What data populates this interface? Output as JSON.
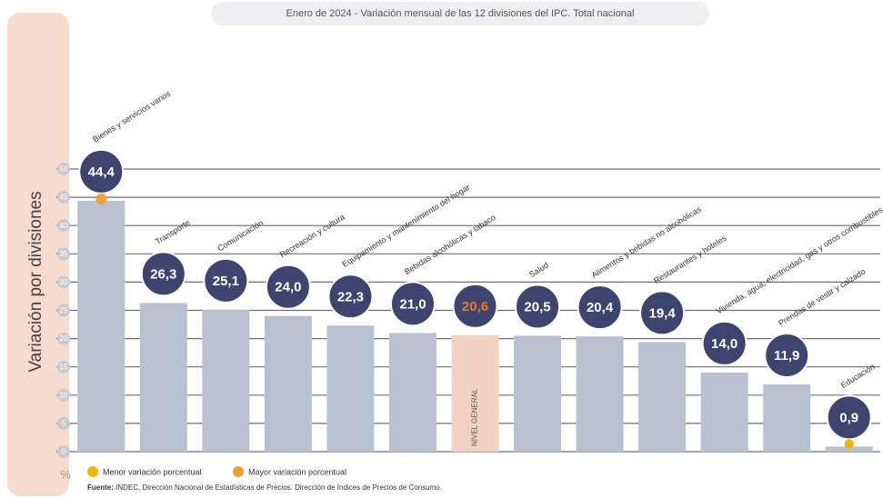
{
  "chart_data": {
    "type": "bar",
    "title": "Enero de 2024 - Variación mensual de las 12 divisiones del IPC. Total nacional",
    "y_axis_label": "Variación por divisiones",
    "unit_label": "%",
    "categories": [
      "Bienes y servicios varios",
      "Transporte",
      "Comunicación",
      "Recreación y cultura",
      "Equipamiento y mantenimiento del hogar",
      "Bebidas alcohólicas y tabaco",
      "NIVEL GENERAL",
      "Salud",
      "Alimentos y bebidas no alcohólicas",
      "Restaurantes y hoteles",
      "Vivienda, agua, electricidad, gas y otros combustibles",
      "Prendas de vestir y calzado",
      "Educación"
    ],
    "values": [
      44.4,
      26.3,
      25.1,
      24.0,
      22.3,
      21.0,
      20.6,
      20.5,
      20.4,
      19.4,
      14.0,
      11.9,
      0.9
    ],
    "value_labels": [
      "44,4",
      "26,3",
      "25,1",
      "24,0",
      "22,3",
      "21,0",
      "20,6",
      "20,5",
      "20,4",
      "19,4",
      "14,0",
      "11,9",
      "0,9"
    ],
    "color": "#b9c0d0",
    "colors": [
      "#b9c0d0",
      "#b9c0d0",
      "#b9c0d0",
      "#b9c0d0",
      "#b9c0d0",
      "#b9c0d0",
      "#f2d2c3",
      "#b9c0d0",
      "#b9c0d0",
      "#b9c0d0",
      "#b9c0d0",
      "#b9c0d0",
      "#b9c0d0"
    ],
    "accent_color": "#e8772e",
    "bubble_color": "#3d456f",
    "ylim": [
      0,
      50
    ],
    "yticks": [
      0,
      5,
      10,
      15,
      20,
      25,
      30,
      35,
      40,
      45,
      50
    ],
    "grid": true,
    "legend": [
      {
        "label": "Menor variación porcentual",
        "color": "#f5b400"
      },
      {
        "label": "Mayor variación porcentual",
        "color": "#f0a035"
      }
    ],
    "source_label": "Fuente:",
    "source": "INDEC, Dirección Nacional de Estadísticas de Precios. Dirección de Índices de Precios de Consumo."
  }
}
